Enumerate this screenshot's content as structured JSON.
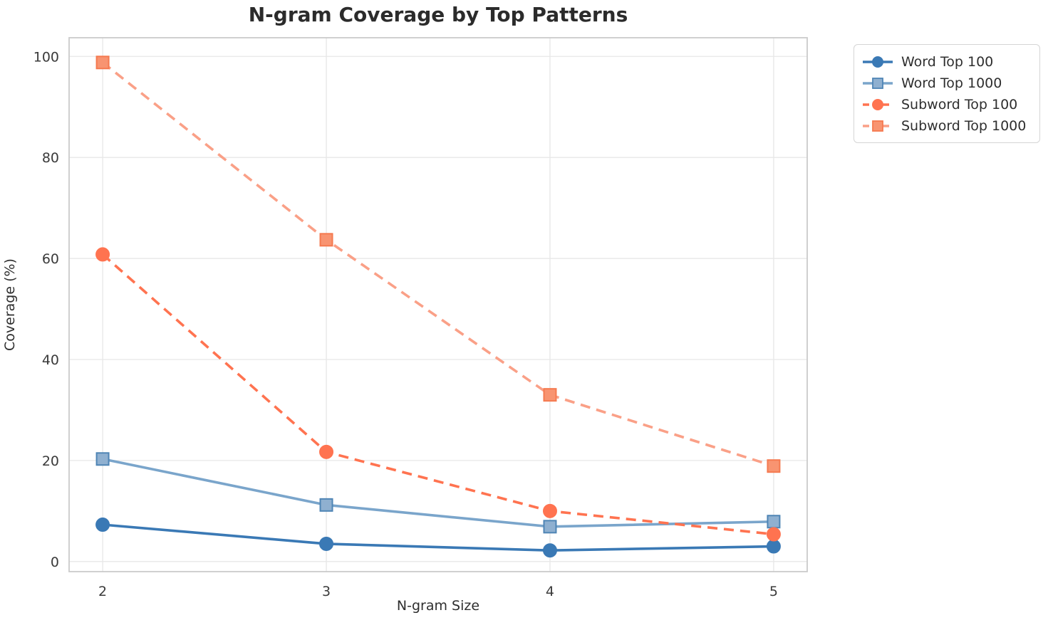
{
  "figure": {
    "background": "#ffffff"
  },
  "chart_data": {
    "type": "line",
    "title": "N-gram Coverage by Top Patterns",
    "xlabel": "N-gram Size",
    "ylabel": "Coverage (%)",
    "x": [
      2,
      3,
      4,
      5
    ],
    "series": [
      {
        "name": "Word Top 100",
        "values": [
          7.3,
          3.5,
          2.2,
          3.0
        ],
        "color": "#3A79B5",
        "marker": "circle",
        "marker_fill": "#3A79B5",
        "marker_edge": "#3A79B5",
        "dash": "solid"
      },
      {
        "name": "Word Top 1000",
        "values": [
          20.3,
          11.2,
          6.9,
          7.9
        ],
        "color": "#7AA5CB",
        "marker": "square",
        "marker_fill": "#8FB0D0",
        "marker_edge": "#4F85B5",
        "dash": "solid"
      },
      {
        "name": "Subword Top 100",
        "values": [
          60.8,
          21.7,
          10.0,
          5.4
        ],
        "color": "#FF7350",
        "marker": "circle",
        "marker_fill": "#FF7350",
        "marker_edge": "#FF7350",
        "dash": "dashed"
      },
      {
        "name": "Subword Top 1000",
        "values": [
          98.8,
          63.7,
          33.0,
          18.9
        ],
        "color": "#FAA087",
        "marker": "square",
        "marker_fill": "#F89471",
        "marker_edge": "#F57A50",
        "dash": "dashed"
      }
    ],
    "xticks": [
      2,
      3,
      4,
      5
    ],
    "yticks": [
      0,
      20,
      40,
      60,
      80,
      100
    ],
    "xlim": [
      1.85,
      5.15
    ],
    "ylim": [
      -2,
      103.7
    ],
    "grid": true,
    "legend_position": "outside-right",
    "colors": {
      "grid": "#E7E7E7",
      "spine": "#CBCBCB",
      "title_text": "#2B2B2B",
      "tick_text": "#3A3A3A",
      "legend_border": "#D5D5D5"
    }
  }
}
